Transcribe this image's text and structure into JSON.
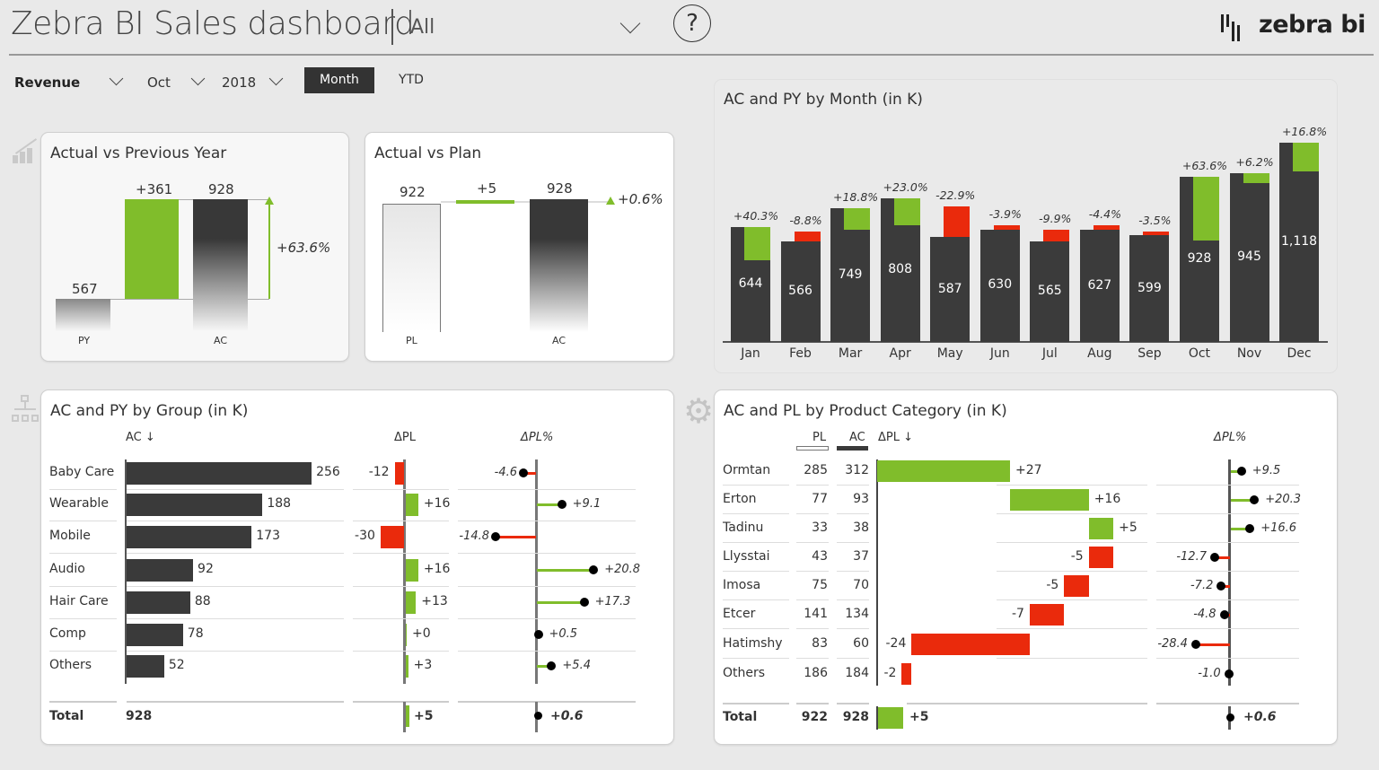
{
  "header": {
    "title": "Zebra BI Sales dashboard",
    "scope": "All",
    "help_label": "?",
    "logo_text": "zebra bi"
  },
  "filters": {
    "measure": "Revenue",
    "month": "Oct",
    "year": "2018",
    "month_button": "Month",
    "ytd_button": "YTD"
  },
  "colors": {
    "positive": "#80bd2b",
    "negative": "#ea2a0c",
    "actual": "#3a3a3a",
    "background": "#e9e9e9"
  },
  "avpy": {
    "title": "Actual vs Previous Year",
    "py_value": "567",
    "delta": "+361",
    "ac_value": "928",
    "delta_pct": "+63.6%",
    "py_label": "PY",
    "ac_label": "AC"
  },
  "avpl": {
    "title": "Actual vs Plan",
    "pl_value": "922",
    "delta": "+5",
    "ac_value": "928",
    "delta_pct": "+0.6%",
    "pl_label": "PL",
    "ac_label": "AC"
  },
  "month_chart": {
    "title": "AC and PY by Month (in K)",
    "chart_data": {
      "type": "bar",
      "categories": [
        "Jan",
        "Feb",
        "Mar",
        "Apr",
        "May",
        "Jun",
        "Jul",
        "Aug",
        "Sep",
        "Oct",
        "Nov",
        "Dec"
      ],
      "ac": [
        644,
        566,
        749,
        808,
        587,
        630,
        565,
        627,
        599,
        928,
        945,
        1118
      ],
      "ac_labels": [
        "644",
        "566",
        "749",
        "808",
        "587",
        "630",
        "565",
        "627",
        "599",
        "928",
        "945",
        "1,118"
      ],
      "delta_py_pct": [
        "+40.3%",
        "-8.8%",
        "+18.8%",
        "+23.0%",
        "-22.9%",
        "-3.9%",
        "-9.9%",
        "-4.4%",
        "-3.5%",
        "+63.6%",
        "+6.2%",
        "+16.8%"
      ]
    }
  },
  "group_table": {
    "title": "AC and PY by Group (in K)",
    "headers": {
      "ac": "AC ↓",
      "dpl": "ΔPL",
      "dpl_pct": "ΔPL%"
    },
    "rows": [
      {
        "name": "Baby Care",
        "ac": "256",
        "dpl": "-12",
        "dpl_pct": "-4.6"
      },
      {
        "name": "Wearable",
        "ac": "188",
        "dpl": "+16",
        "dpl_pct": "+9.1"
      },
      {
        "name": "Mobile",
        "ac": "173",
        "dpl": "-30",
        "dpl_pct": "-14.8"
      },
      {
        "name": "Audio",
        "ac": "92",
        "dpl": "+16",
        "dpl_pct": "+20.8"
      },
      {
        "name": "Hair Care",
        "ac": "88",
        "dpl": "+13",
        "dpl_pct": "+17.3"
      },
      {
        "name": "Comp",
        "ac": "78",
        "dpl": "+0",
        "dpl_pct": "+0.5"
      },
      {
        "name": "Others",
        "ac": "52",
        "dpl": "+3",
        "dpl_pct": "+5.4"
      }
    ],
    "total": {
      "name": "Total",
      "ac": "928",
      "dpl": "+5",
      "dpl_pct": "+0.6"
    }
  },
  "product_table": {
    "title": "AC and PL by Product Category (in K)",
    "headers": {
      "pl": "PL",
      "ac": "AC",
      "dpl": "ΔPL ↓",
      "dpl_pct": "ΔPL%"
    },
    "rows": [
      {
        "name": "Ormtan",
        "pl": "285",
        "ac": "312",
        "dpl": "+27",
        "dpl_pct": "+9.5"
      },
      {
        "name": "Erton",
        "pl": "77",
        "ac": "93",
        "dpl": "+16",
        "dpl_pct": "+20.3"
      },
      {
        "name": "Tadinu",
        "pl": "33",
        "ac": "38",
        "dpl": "+5",
        "dpl_pct": "+16.6"
      },
      {
        "name": "Llysstai",
        "pl": "43",
        "ac": "37",
        "dpl": "-5",
        "dpl_pct": "-12.7"
      },
      {
        "name": "Imosa",
        "pl": "75",
        "ac": "70",
        "dpl": "-5",
        "dpl_pct": "-7.2"
      },
      {
        "name": "Etcer",
        "pl": "141",
        "ac": "134",
        "dpl": "-7",
        "dpl_pct": "-4.8"
      },
      {
        "name": "Hatimshy",
        "pl": "83",
        "ac": "60",
        "dpl": "-24",
        "dpl_pct": "-28.4"
      },
      {
        "name": "Others",
        "pl": "186",
        "ac": "184",
        "dpl": "-2",
        "dpl_pct": "-1.0"
      }
    ],
    "total": {
      "name": "Total",
      "pl": "922",
      "ac": "928",
      "dpl": "+5",
      "dpl_pct": "+0.6"
    }
  }
}
